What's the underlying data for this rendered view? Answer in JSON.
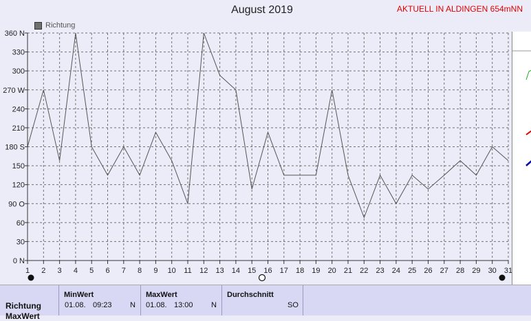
{
  "header": {
    "title": "August 2019",
    "badge": "AKTUELL IN ALDINGEN 654mNN"
  },
  "legend": {
    "label": "Richtung"
  },
  "chart_data": {
    "type": "line",
    "series": [
      {
        "name": "Richtung",
        "x": [
          1,
          2,
          3,
          4,
          5,
          6,
          7,
          8,
          9,
          10,
          11,
          12,
          13,
          14,
          15,
          16,
          17,
          18,
          19,
          20,
          21,
          22,
          23,
          24,
          25,
          26,
          27,
          28,
          29,
          30,
          31
        ],
        "values": [
          180,
          270,
          158,
          360,
          180,
          135,
          180,
          135,
          203,
          158,
          90,
          360,
          293,
          270,
          113,
          203,
          135,
          135,
          135,
          270,
          135,
          68,
          135,
          90,
          135,
          113,
          135,
          158,
          135,
          180,
          158
        ]
      }
    ],
    "x_ticks": [
      "1",
      "2",
      "3",
      "4",
      "5",
      "6",
      "7",
      "8",
      "9",
      "10",
      "11",
      "12",
      "13",
      "14",
      "15",
      "16",
      "17",
      "18",
      "19",
      "20",
      "21",
      "22",
      "23",
      "24",
      "25",
      "26",
      "27",
      "28",
      "29",
      "30",
      "31"
    ],
    "y_ticks": [
      "0 N",
      "30",
      "60",
      "90 O",
      "120",
      "150",
      "180 S",
      "210",
      "240",
      "270 W",
      "300",
      "330",
      "360 N"
    ],
    "ylim": [
      0,
      360
    ],
    "grid": true,
    "legend_position": "top-left"
  },
  "stats": {
    "row_label": "Richtung",
    "row_label_next": "MaxWert",
    "min": {
      "header": "MinWert",
      "date": "01.08.",
      "time": "09:23",
      "dir": "N"
    },
    "max": {
      "header": "MaxWert",
      "date": "01.08.",
      "time": "13:00",
      "dir": "N"
    },
    "avg": {
      "header": "Durchschnitt",
      "dir": "SO"
    }
  },
  "colors": {
    "line": "#555555",
    "grid": "#707070",
    "badge": "#e00000",
    "background": "#ececf8"
  }
}
